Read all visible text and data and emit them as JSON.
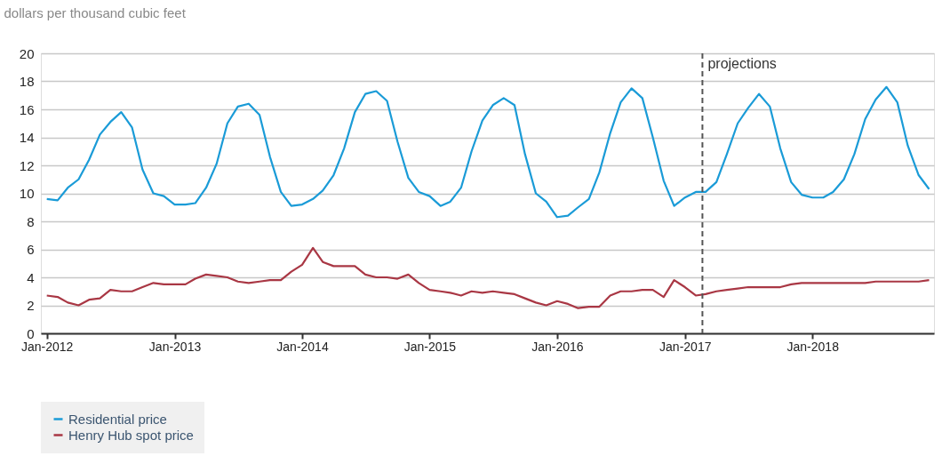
{
  "chart_data": {
    "type": "line",
    "ylabel": "dollars per thousand cubic feet",
    "x": [
      "2012-01",
      "2012-02",
      "2012-03",
      "2012-04",
      "2012-05",
      "2012-06",
      "2012-07",
      "2012-08",
      "2012-09",
      "2012-10",
      "2012-11",
      "2012-12",
      "2013-01",
      "2013-02",
      "2013-03",
      "2013-04",
      "2013-05",
      "2013-06",
      "2013-07",
      "2013-08",
      "2013-09",
      "2013-10",
      "2013-11",
      "2013-12",
      "2014-01",
      "2014-02",
      "2014-03",
      "2014-04",
      "2014-05",
      "2014-06",
      "2014-07",
      "2014-08",
      "2014-09",
      "2014-10",
      "2014-11",
      "2014-12",
      "2015-01",
      "2015-02",
      "2015-03",
      "2015-04",
      "2015-05",
      "2015-06",
      "2015-07",
      "2015-08",
      "2015-09",
      "2015-10",
      "2015-11",
      "2015-12",
      "2016-01",
      "2016-02",
      "2016-03",
      "2016-04",
      "2016-05",
      "2016-06",
      "2016-07",
      "2016-08",
      "2016-09",
      "2016-10",
      "2016-11",
      "2016-12",
      "2017-01",
      "2017-02",
      "2017-03",
      "2017-04",
      "2017-05",
      "2017-06",
      "2017-07",
      "2017-08",
      "2017-09",
      "2017-10",
      "2017-11",
      "2017-12",
      "2018-01",
      "2018-02",
      "2018-03",
      "2018-04",
      "2018-05",
      "2018-06",
      "2018-07",
      "2018-08",
      "2018-09",
      "2018-10",
      "2018-11",
      "2018-12"
    ],
    "series": [
      {
        "name": "Residential price",
        "color": "#1a9bd7",
        "values": [
          9.6,
          9.5,
          10.4,
          11.0,
          12.4,
          14.2,
          15.1,
          15.8,
          14.7,
          11.7,
          10.0,
          9.8,
          9.2,
          9.2,
          9.3,
          10.4,
          12.1,
          15.0,
          16.2,
          16.4,
          15.6,
          12.6,
          10.1,
          9.1,
          9.2,
          9.6,
          10.2,
          11.3,
          13.2,
          15.8,
          17.1,
          17.3,
          16.6,
          13.7,
          11.1,
          10.1,
          9.8,
          9.1,
          9.4,
          10.4,
          13.0,
          15.2,
          16.3,
          16.8,
          16.3,
          12.8,
          10.0,
          9.4,
          8.3,
          8.4,
          9.0,
          9.6,
          11.5,
          14.3,
          16.5,
          17.5,
          16.8,
          14.0,
          10.9,
          9.1,
          9.7,
          10.1,
          10.1,
          10.8,
          12.8,
          15.0,
          16.1,
          17.1,
          16.2,
          13.2,
          10.8,
          9.9,
          9.7,
          9.7,
          10.1,
          11.0,
          12.8,
          15.3,
          16.7,
          17.6,
          16.5,
          13.4,
          11.3,
          10.3
        ]
      },
      {
        "name": "Henry Hub spot price",
        "color": "#a93744",
        "values": [
          2.7,
          2.6,
          2.2,
          2.0,
          2.4,
          2.5,
          3.1,
          3.0,
          3.0,
          3.3,
          3.6,
          3.5,
          3.5,
          3.5,
          3.9,
          4.2,
          4.1,
          4.0,
          3.7,
          3.6,
          3.7,
          3.8,
          3.8,
          4.4,
          4.9,
          6.1,
          5.1,
          4.8,
          4.8,
          4.8,
          4.2,
          4.0,
          4.0,
          3.9,
          4.2,
          3.6,
          3.1,
          3.0,
          2.9,
          2.7,
          3.0,
          2.9,
          3.0,
          2.9,
          2.8,
          2.5,
          2.2,
          2.0,
          2.3,
          2.1,
          1.8,
          1.9,
          1.9,
          2.7,
          3.0,
          3.0,
          3.1,
          3.1,
          2.6,
          3.8,
          3.3,
          2.7,
          2.8,
          3.0,
          3.1,
          3.2,
          3.3,
          3.3,
          3.3,
          3.3,
          3.5,
          3.6,
          3.6,
          3.6,
          3.6,
          3.6,
          3.6,
          3.6,
          3.7,
          3.7,
          3.7,
          3.7,
          3.7,
          3.8
        ]
      }
    ],
    "xlim": [
      "2011-12-15",
      "2018-12-15"
    ],
    "xticks": [
      {
        "value": "2012-01",
        "label": "Jan-2012"
      },
      {
        "value": "2013-01",
        "label": "Jan-2013"
      },
      {
        "value": "2014-01",
        "label": "Jan-2014"
      },
      {
        "value": "2015-01",
        "label": "Jan-2015"
      },
      {
        "value": "2016-01",
        "label": "Jan-2016"
      },
      {
        "value": "2017-01",
        "label": "Jan-2017"
      },
      {
        "value": "2018-01",
        "label": "Jan-2018"
      }
    ],
    "ylim": [
      0,
      20
    ],
    "yticks": [
      0,
      2,
      4,
      6,
      8,
      10,
      12,
      14,
      16,
      18,
      20
    ],
    "ref_lines": [
      {
        "axis": "x",
        "value": "2017-02-20",
        "label": "projections",
        "color": "#555555",
        "line_style": "dashed"
      }
    ],
    "grid": "y",
    "legend": "bottom",
    "marker": "none",
    "line_style": "solid"
  }
}
